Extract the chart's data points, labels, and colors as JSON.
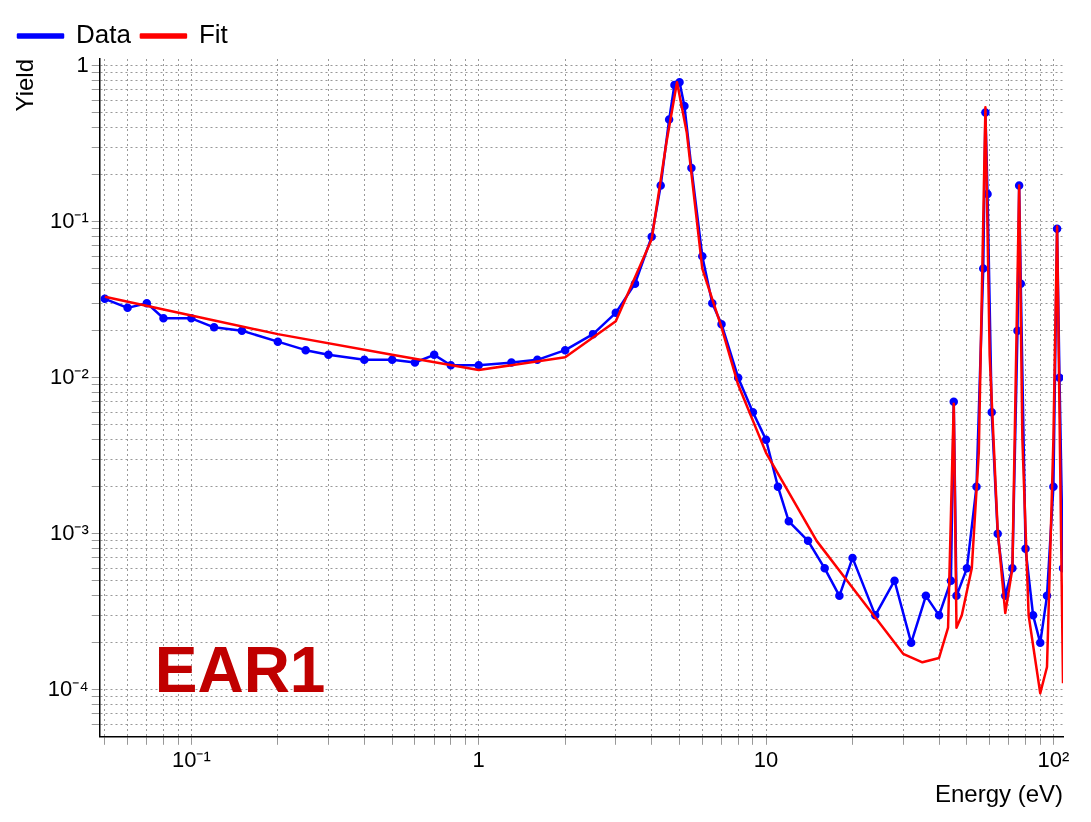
{
  "chart_data": {
    "type": "line",
    "xlabel": "Energy (eV)",
    "ylabel": "Yield",
    "log": "xy",
    "grid": true,
    "legend": "top left",
    "annotations": [
      "EAR1"
    ],
    "xlim": [
      0.048,
      108
    ],
    "ylim": [
      5e-05,
      1.1
    ],
    "xticks": [
      {
        "value": 0.05,
        "label": null
      },
      {
        "value": 0.06,
        "label": null
      },
      {
        "value": 0.07,
        "label": null
      },
      {
        "value": 0.08,
        "label": null
      },
      {
        "value": 0.09,
        "label": null
      },
      {
        "value": 0.1,
        "label": "10⁻¹"
      },
      {
        "value": 0.2,
        "label": null
      },
      {
        "value": 0.3,
        "label": null
      },
      {
        "value": 0.4,
        "label": null
      },
      {
        "value": 0.5,
        "label": null
      },
      {
        "value": 0.6,
        "label": null
      },
      {
        "value": 0.7,
        "label": null
      },
      {
        "value": 0.8,
        "label": null
      },
      {
        "value": 0.9,
        "label": null
      },
      1,
      {
        "value": 2,
        "label": null
      },
      {
        "value": 3,
        "label": null
      },
      {
        "value": 4,
        "label": null
      },
      {
        "value": 5,
        "label": null
      },
      {
        "value": 6,
        "label": null
      },
      {
        "value": 7,
        "label": null
      },
      {
        "value": 8,
        "label": null
      },
      {
        "value": 9,
        "label": null
      },
      10,
      {
        "value": 20,
        "label": null
      },
      {
        "value": 30,
        "label": null
      },
      {
        "value": 40,
        "label": null
      },
      {
        "value": 50,
        "label": null
      },
      {
        "value": 60,
        "label": null
      },
      {
        "value": 70,
        "label": null
      },
      {
        "value": 80,
        "label": null
      },
      {
        "value": 90,
        "label": null
      },
      {
        "value": 100,
        "label": "10²"
      }
    ],
    "yticks": [
      {
        "value": 6e-05,
        "label": null
      },
      {
        "value": 7e-05,
        "label": null
      },
      {
        "value": 8e-05,
        "label": null
      },
      {
        "value": 9e-05,
        "label": null
      },
      {
        "value": 0.0001,
        "label": "10⁻⁴"
      },
      {
        "value": 0.0002,
        "label": null
      },
      {
        "value": 0.0003,
        "label": null
      },
      {
        "value": 0.0004,
        "label": null
      },
      {
        "value": 0.0005,
        "label": null
      },
      {
        "value": 0.0006,
        "label": null
      },
      {
        "value": 0.0007,
        "label": null
      },
      {
        "value": 0.0008,
        "label": null
      },
      {
        "value": 0.0009,
        "label": null
      },
      {
        "value": 0.001,
        "label": "10⁻³"
      },
      {
        "value": 0.002,
        "label": null
      },
      {
        "value": 0.003,
        "label": null
      },
      {
        "value": 0.004,
        "label": null
      },
      {
        "value": 0.005,
        "label": null
      },
      {
        "value": 0.006,
        "label": null
      },
      {
        "value": 0.007,
        "label": null
      },
      {
        "value": 0.008,
        "label": null
      },
      {
        "value": 0.009,
        "label": null
      },
      {
        "value": 0.01,
        "label": "10⁻²"
      },
      {
        "value": 0.02,
        "label": null
      },
      {
        "value": 0.03,
        "label": null
      },
      {
        "value": 0.04,
        "label": null
      },
      {
        "value": 0.05,
        "label": null
      },
      {
        "value": 0.06,
        "label": null
      },
      {
        "value": 0.07,
        "label": null
      },
      {
        "value": 0.08,
        "label": null
      },
      {
        "value": 0.09,
        "label": null
      },
      {
        "value": 0.1,
        "label": "10⁻¹"
      },
      {
        "value": 0.2,
        "label": null
      },
      {
        "value": 0.3,
        "label": null
      },
      {
        "value": 0.4,
        "label": null
      },
      {
        "value": 0.5,
        "label": null
      },
      {
        "value": 0.6,
        "label": null
      },
      {
        "value": 0.7,
        "label": null
      },
      {
        "value": 0.8,
        "label": null
      },
      {
        "value": 0.9,
        "label": null
      },
      1
    ],
    "series": [
      {
        "name": "Data",
        "color": "#0000ff",
        "marker": "circle",
        "x": [
          0.05,
          0.06,
          0.07,
          0.08,
          0.1,
          0.12,
          0.15,
          0.2,
          0.25,
          0.3,
          0.4,
          0.5,
          0.6,
          0.7,
          0.8,
          1,
          1.3,
          1.6,
          2,
          2.5,
          3,
          3.5,
          4,
          4.3,
          4.6,
          4.8,
          5,
          5.2,
          5.5,
          6,
          6.5,
          7,
          8,
          9,
          10,
          11,
          12,
          14,
          16,
          18,
          20,
          24,
          28,
          32,
          36,
          40,
          44,
          45,
          46,
          50,
          54,
          57,
          58,
          59,
          61,
          64,
          68,
          72,
          75,
          76,
          77,
          80,
          85,
          90,
          95,
          100,
          103,
          105,
          108
        ],
        "values": [
          0.032,
          0.028,
          0.03,
          0.024,
          0.024,
          0.021,
          0.02,
          0.017,
          0.015,
          0.014,
          0.013,
          0.013,
          0.0125,
          0.014,
          0.012,
          0.012,
          0.0125,
          0.013,
          0.015,
          0.019,
          0.026,
          0.04,
          0.08,
          0.17,
          0.45,
          0.75,
          0.78,
          0.55,
          0.22,
          0.06,
          0.03,
          0.022,
          0.01,
          0.006,
          0.004,
          0.002,
          0.0012,
          0.0009,
          0.0006,
          0.0004,
          0.0007,
          0.0003,
          0.0005,
          0.0002,
          0.0004,
          0.0003,
          0.0005,
          0.007,
          0.0004,
          0.0006,
          0.002,
          0.05,
          0.5,
          0.15,
          0.006,
          0.001,
          0.0004,
          0.0006,
          0.02,
          0.17,
          0.04,
          0.0008,
          0.0003,
          0.0002,
          0.0004,
          0.002,
          0.09,
          0.01,
          0.0006
        ]
      },
      {
        "name": "Fit",
        "color": "#ff0000",
        "marker": "none",
        "x": [
          0.05,
          0.1,
          0.2,
          0.5,
          1,
          2,
          3,
          4,
          4.5,
          4.9,
          5.3,
          6,
          7,
          8,
          10,
          15,
          20,
          30,
          35,
          40,
          43,
          45,
          46,
          48,
          52,
          55,
          58,
          60,
          64,
          68,
          72,
          76,
          78,
          82,
          90,
          95,
          100,
          103,
          108
        ],
        "values": [
          0.033,
          0.025,
          0.019,
          0.014,
          0.0112,
          0.0135,
          0.023,
          0.077,
          0.32,
          0.78,
          0.37,
          0.05,
          0.021,
          0.009,
          0.0033,
          0.0009,
          0.00045,
          0.00017,
          0.00015,
          0.00016,
          0.00025,
          0.0068,
          0.00025,
          0.0003,
          0.0006,
          0.0033,
          0.54,
          0.014,
          0.00105,
          0.00031,
          0.0006,
          0.17,
          0.004,
          0.0003,
          9.5e-05,
          0.00014,
          0.004,
          0.093,
          0.00011
        ]
      }
    ]
  }
}
